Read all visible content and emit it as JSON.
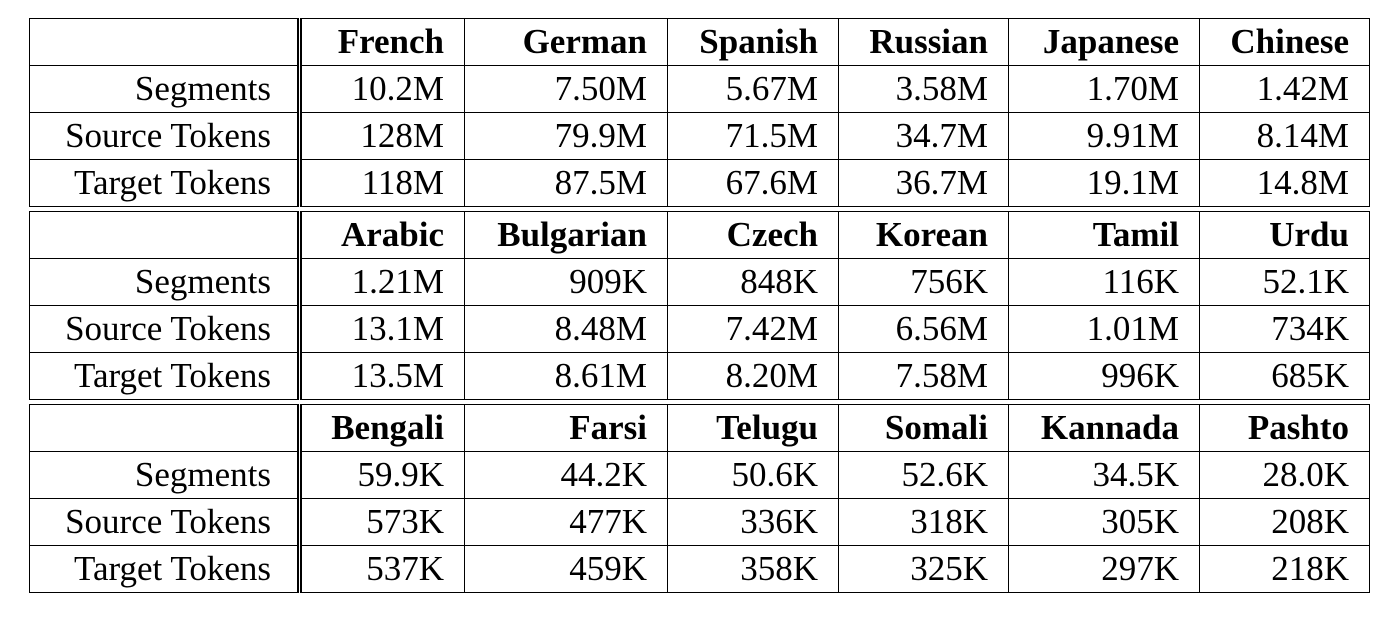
{
  "blocks": [
    {
      "languages": [
        "French",
        "German",
        "Spanish",
        "Russian",
        "Japanese",
        "Chinese"
      ],
      "rows": [
        {
          "label": "Segments",
          "values": [
            "10.2M",
            "7.50M",
            "5.67M",
            "3.58M",
            "1.70M",
            "1.42M"
          ]
        },
        {
          "label": "Source Tokens",
          "values": [
            "128M",
            "79.9M",
            "71.5M",
            "34.7M",
            "9.91M",
            "8.14M"
          ]
        },
        {
          "label": "Target Tokens",
          "values": [
            "118M",
            "87.5M",
            "67.6M",
            "36.7M",
            "19.1M",
            "14.8M"
          ]
        }
      ]
    },
    {
      "languages": [
        "Arabic",
        "Bulgarian",
        "Czech",
        "Korean",
        "Tamil",
        "Urdu"
      ],
      "rows": [
        {
          "label": "Segments",
          "values": [
            "1.21M",
            "909K",
            "848K",
            "756K",
            "116K",
            "52.1K"
          ]
        },
        {
          "label": "Source Tokens",
          "values": [
            "13.1M",
            "8.48M",
            "7.42M",
            "6.56M",
            "1.01M",
            "734K"
          ]
        },
        {
          "label": "Target Tokens",
          "values": [
            "13.5M",
            "8.61M",
            "8.20M",
            "7.58M",
            "996K",
            "685K"
          ]
        }
      ]
    },
    {
      "languages": [
        "Bengali",
        "Farsi",
        "Telugu",
        "Somali",
        "Kannada",
        "Pashto"
      ],
      "rows": [
        {
          "label": "Segments",
          "values": [
            "59.9K",
            "44.2K",
            "50.6K",
            "52.6K",
            "34.5K",
            "28.0K"
          ]
        },
        {
          "label": "Source Tokens",
          "values": [
            "573K",
            "477K",
            "336K",
            "318K",
            "305K",
            "208K"
          ]
        },
        {
          "label": "Target Tokens",
          "values": [
            "537K",
            "459K",
            "358K",
            "325K",
            "297K",
            "218K"
          ]
        }
      ]
    }
  ]
}
